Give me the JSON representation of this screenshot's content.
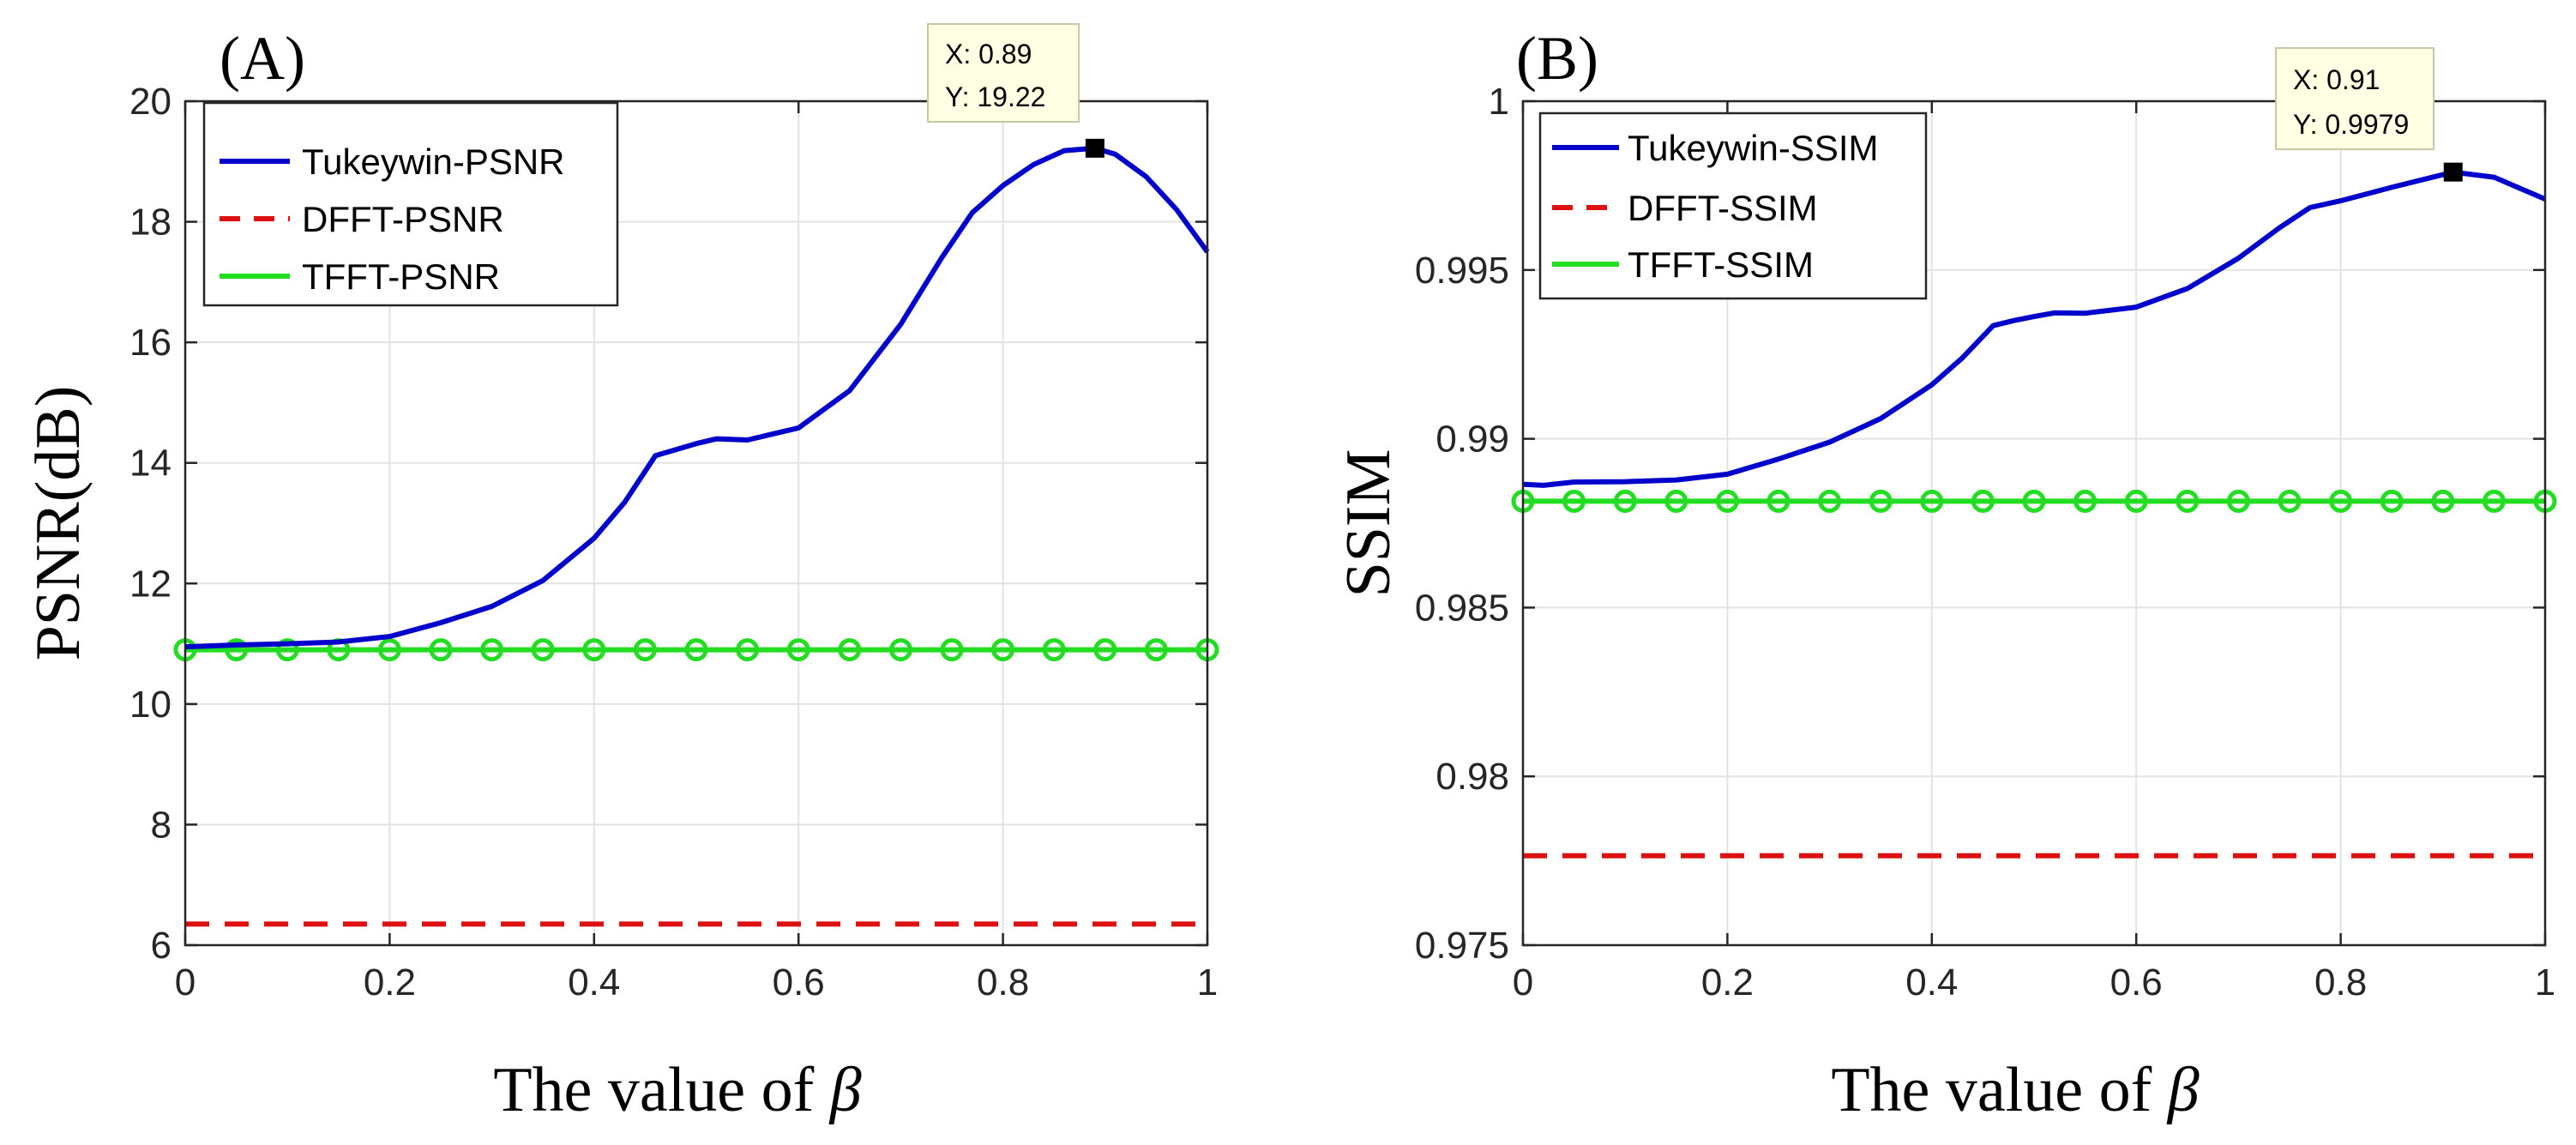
{
  "chart_data": [
    {
      "type": "line",
      "panel_label": "(A)",
      "title": "",
      "xlabel": "The value of ",
      "xlabel_symbol": "β",
      "ylabel": "PSNR(dB)",
      "xlim": [
        0,
        1
      ],
      "ylim": [
        6,
        20
      ],
      "x_ticks": [
        0,
        0.2,
        0.4,
        0.6,
        0.8,
        1
      ],
      "x_tick_labels": [
        "0",
        "0.2",
        "0.4",
        "0.6",
        "0.8",
        "1"
      ],
      "y_ticks": [
        6,
        8,
        10,
        12,
        14,
        16,
        18,
        20
      ],
      "y_tick_labels": [
        "6",
        "8",
        "10",
        "12",
        "14",
        "16",
        "18",
        "20"
      ],
      "grid": true,
      "legend_position": "top-left",
      "series": [
        {
          "name": "Tukeywin-PSNR",
          "color": "#0000cc",
          "style": "solid",
          "x": [
            0,
            0.05,
            0.1,
            0.15,
            0.2,
            0.25,
            0.3,
            0.35,
            0.4,
            0.43,
            0.46,
            0.48,
            0.5,
            0.52,
            0.55,
            0.6,
            0.65,
            0.7,
            0.74,
            0.77,
            0.8,
            0.83,
            0.86,
            0.89,
            0.91,
            0.94,
            0.97,
            1.0
          ],
          "y": [
            10.95,
            10.98,
            11.0,
            11.03,
            11.12,
            11.35,
            11.62,
            12.05,
            12.75,
            13.35,
            14.12,
            14.22,
            14.32,
            14.4,
            14.38,
            14.58,
            15.2,
            16.3,
            17.4,
            18.15,
            18.6,
            18.95,
            19.18,
            19.22,
            19.12,
            18.75,
            18.2,
            17.5
          ]
        },
        {
          "name": "DFFT-PSNR",
          "color": "#dd1111",
          "style": "dashed",
          "x": [
            0,
            1
          ],
          "y": [
            6.35,
            6.35
          ]
        },
        {
          "name": "TFFT-PSNR",
          "color": "#22dd22",
          "style": "solid-circles",
          "x": [
            0,
            0.05,
            0.1,
            0.15,
            0.2,
            0.25,
            0.3,
            0.35,
            0.4,
            0.45,
            0.5,
            0.55,
            0.6,
            0.65,
            0.7,
            0.75,
            0.8,
            0.85,
            0.9,
            0.95,
            1.0
          ],
          "y": [
            10.9,
            10.9,
            10.9,
            10.9,
            10.9,
            10.9,
            10.9,
            10.9,
            10.9,
            10.9,
            10.9,
            10.9,
            10.9,
            10.9,
            10.9,
            10.9,
            10.9,
            10.9,
            10.9,
            10.9,
            10.9
          ]
        }
      ],
      "datatip": {
        "x": 0.89,
        "y": 19.22,
        "x_text": "X: 0.89",
        "y_text": "Y: 19.22"
      }
    },
    {
      "type": "line",
      "panel_label": "(B)",
      "title": "",
      "xlabel": "The value of ",
      "xlabel_symbol": "β",
      "ylabel": "SSIM",
      "xlim": [
        0,
        1
      ],
      "ylim": [
        0.975,
        1.0
      ],
      "x_ticks": [
        0,
        0.2,
        0.4,
        0.6,
        0.8,
        1
      ],
      "x_tick_labels": [
        "0",
        "0.2",
        "0.4",
        "0.6",
        "0.8",
        "1"
      ],
      "y_ticks": [
        0.975,
        0.98,
        0.985,
        0.99,
        0.995,
        1.0
      ],
      "y_tick_labels": [
        "0.975",
        "0.98",
        "0.985",
        "0.99",
        "0.995",
        "1"
      ],
      "grid": true,
      "legend_position": "top-left",
      "series": [
        {
          "name": "Tukeywin-SSIM",
          "color": "#0000cc",
          "style": "solid",
          "x": [
            0,
            0.02,
            0.05,
            0.1,
            0.15,
            0.2,
            0.25,
            0.3,
            0.35,
            0.4,
            0.43,
            0.46,
            0.48,
            0.5,
            0.52,
            0.55,
            0.6,
            0.65,
            0.7,
            0.74,
            0.77,
            0.8,
            0.85,
            0.91,
            0.95,
            1.0
          ],
          "y": [
            0.98865,
            0.98862,
            0.98872,
            0.98873,
            0.98878,
            0.98895,
            0.9894,
            0.9899,
            0.9906,
            0.9916,
            0.9924,
            0.99335,
            0.9935,
            0.99362,
            0.99373,
            0.99372,
            0.9939,
            0.99445,
            0.99535,
            0.99625,
            0.99685,
            0.99705,
            0.99745,
            0.9979,
            0.99775,
            0.9971
          ]
        },
        {
          "name": "DFFT-SSIM",
          "color": "#dd1111",
          "style": "dashed",
          "x": [
            0,
            1
          ],
          "y": [
            0.97765,
            0.97765
          ]
        },
        {
          "name": "TFFT-SSIM",
          "color": "#22dd22",
          "style": "solid-circles",
          "x": [
            0,
            0.05,
            0.1,
            0.15,
            0.2,
            0.25,
            0.3,
            0.35,
            0.4,
            0.45,
            0.5,
            0.55,
            0.6,
            0.65,
            0.7,
            0.75,
            0.8,
            0.85,
            0.9,
            0.95,
            1.0
          ],
          "y": [
            0.98815,
            0.98815,
            0.98815,
            0.98815,
            0.98815,
            0.98815,
            0.98815,
            0.98815,
            0.98815,
            0.98815,
            0.98815,
            0.98815,
            0.98815,
            0.98815,
            0.98815,
            0.98815,
            0.98815,
            0.98815,
            0.98815,
            0.98815,
            0.98815
          ]
        }
      ],
      "datatip": {
        "x": 0.91,
        "y": 0.9979,
        "x_text": "X: 0.91",
        "y_text": "Y: 0.9979"
      }
    }
  ]
}
